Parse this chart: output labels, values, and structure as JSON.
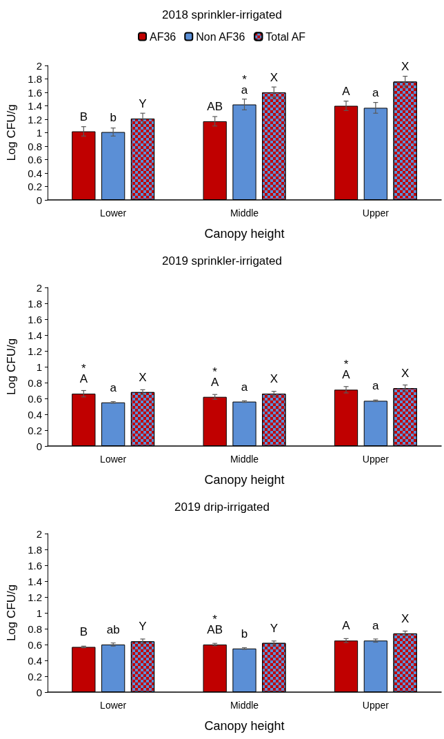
{
  "chart_data": [
    {
      "type": "bar",
      "title": "2018 sprinkler-irrigated",
      "xlabel": "Canopy height",
      "ylabel": "Log CFU/g",
      "categories": [
        "Lower",
        "Middle",
        "Upper"
      ],
      "ylim": [
        0,
        2
      ],
      "yticks": [
        0,
        0.2,
        0.4,
        0.6,
        0.8,
        1,
        1.2,
        1.4,
        1.6,
        1.8,
        2
      ],
      "grid": false,
      "legend": "top",
      "series": [
        {
          "name": "AF36",
          "color": "#c00000",
          "values": [
            1.02,
            1.17,
            1.4
          ],
          "errors": [
            0.07,
            0.07,
            0.07
          ],
          "value_labels": [
            "B",
            "AB",
            "A"
          ]
        },
        {
          "name": "Non AF36",
          "color": "#5b8fd6",
          "values": [
            1.01,
            1.42,
            1.37
          ],
          "errors": [
            0.06,
            0.08,
            0.08
          ],
          "value_labels": [
            "b",
            "*\na",
            "a"
          ]
        },
        {
          "name": "Total AF",
          "color": "#c00000",
          "values": [
            1.21,
            1.6,
            1.76
          ],
          "errors": [
            0.08,
            0.08,
            0.08
          ],
          "value_labels": [
            "Y",
            "X",
            "X"
          ]
        }
      ]
    },
    {
      "type": "bar",
      "title": "2019 sprinkler-irrigated",
      "xlabel": "Canopy height",
      "ylabel": "Log CFU/g",
      "categories": [
        "Lower",
        "Middle",
        "Upper"
      ],
      "ylim": [
        0,
        2
      ],
      "yticks": [
        0,
        0.2,
        0.4,
        0.6,
        0.8,
        1,
        1.2,
        1.4,
        1.6,
        1.8,
        2
      ],
      "grid": false,
      "legend": false,
      "series": [
        {
          "color": "#c00000",
          "values": [
            0.66,
            0.62,
            0.71
          ],
          "errors": [
            0.04,
            0.03,
            0.04
          ],
          "value_labels": [
            "*\nA",
            "*\nA",
            "*\nA"
          ]
        },
        {
          "color": "#5b8fd6",
          "values": [
            0.55,
            0.56,
            0.57
          ],
          "errors": [
            0.01,
            0.01,
            0.01
          ],
          "value_labels": [
            "a",
            "a",
            "a"
          ]
        },
        {
          "color": "#c00000",
          "values": [
            0.68,
            0.66,
            0.73
          ],
          "errors": [
            0.03,
            0.03,
            0.04
          ],
          "value_labels": [
            "X",
            "X",
            "X"
          ]
        }
      ]
    },
    {
      "type": "bar",
      "title": "2019 drip-irrigated",
      "xlabel": "Canopy height",
      "ylabel": "Log CFU/g",
      "categories": [
        "Lower",
        "Middle",
        "Upper"
      ],
      "ylim": [
        0,
        2
      ],
      "yticks": [
        0,
        0.2,
        0.4,
        0.6,
        0.8,
        1,
        1.2,
        1.4,
        1.6,
        1.8,
        2
      ],
      "grid": false,
      "legend": false,
      "series": [
        {
          "color": "#c00000",
          "values": [
            0.57,
            0.6,
            0.65
          ],
          "errors": [
            0.01,
            0.015,
            0.025
          ],
          "value_labels": [
            "B",
            "*\nAB",
            "A"
          ]
        },
        {
          "color": "#5b8fd6",
          "values": [
            0.6,
            0.55,
            0.65
          ],
          "errors": [
            0.02,
            0.01,
            0.02
          ],
          "value_labels": [
            "ab",
            "b",
            "a"
          ]
        },
        {
          "color": "#c00000",
          "values": [
            0.64,
            0.62,
            0.74
          ],
          "errors": [
            0.03,
            0.025,
            0.03
          ],
          "value_labels": [
            "Y",
            "Y",
            "X"
          ]
        }
      ]
    }
  ]
}
